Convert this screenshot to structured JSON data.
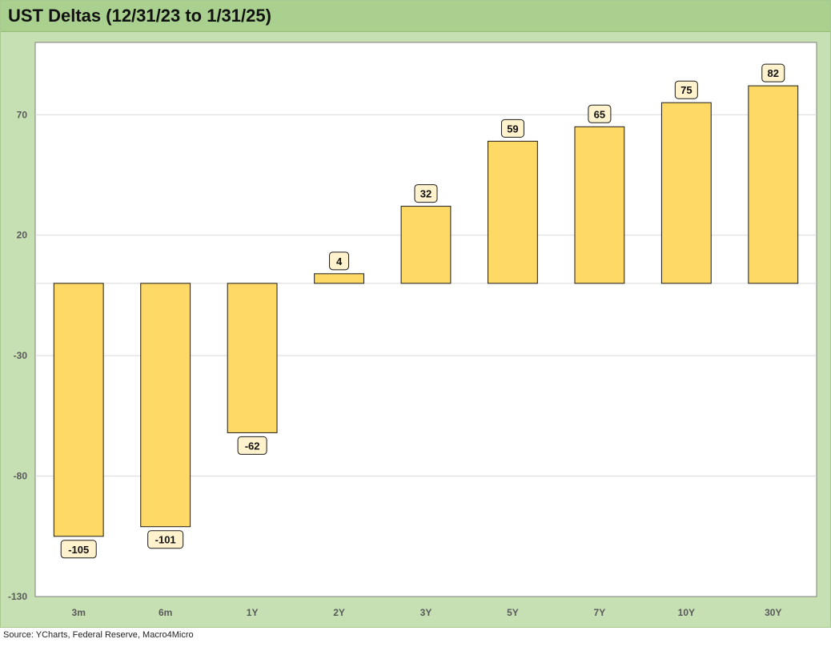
{
  "chart_data": {
    "type": "bar",
    "title": "UST Deltas (12/31/23 to 1/31/25)",
    "xlabel": "",
    "ylabel": "",
    "categories": [
      "3m",
      "6m",
      "1Y",
      "2Y",
      "3Y",
      "5Y",
      "7Y",
      "10Y",
      "30Y"
    ],
    "values": [
      -105,
      -101,
      -62,
      4,
      32,
      59,
      65,
      75,
      82
    ],
    "data_labels": [
      "-105",
      "-101",
      "-62",
      "4",
      "32",
      "59",
      "65",
      "75",
      "82"
    ],
    "ylim": [
      -130,
      100
    ],
    "y_ticks": [
      -130,
      -80,
      -30,
      20,
      70
    ],
    "y_tick_labels": [
      "-130",
      "-80",
      "-30",
      "20",
      "70"
    ],
    "grid": true,
    "legend": "none",
    "colors": {
      "bar_fill": "#ffd966",
      "bar_stroke": "#1a1a1a",
      "label_fill": "#fff2cc",
      "frame": "#c6e0b4",
      "title_bar": "#a9d08e",
      "gridline": "#d9d9d9"
    }
  },
  "source": "Source: YCharts, Federal Reserve, Macro4Micro"
}
